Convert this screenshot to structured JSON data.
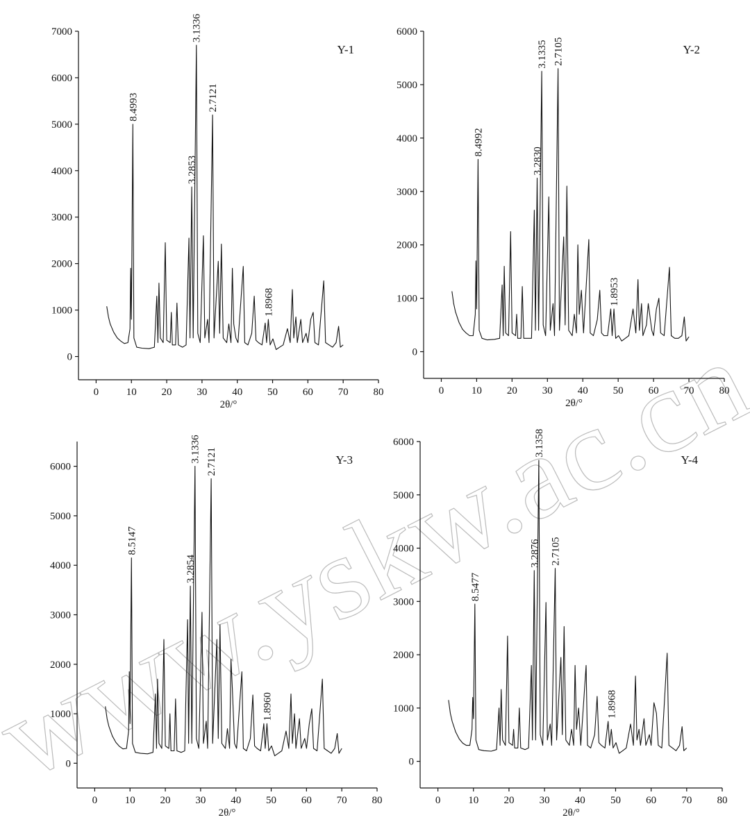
{
  "watermark": "www.yskw.ac.cn",
  "chart_data": [
    {
      "type": "line",
      "title": "Y-1",
      "xlabel": "2θ/°",
      "color": "#111111",
      "xlim": [
        -5,
        80
      ],
      "xticks": [
        0,
        10,
        20,
        30,
        40,
        50,
        60,
        70,
        80
      ],
      "ylim": [
        -500,
        7000
      ],
      "yticks": [
        0,
        1000,
        2000,
        3000,
        4000,
        5000,
        6000,
        7000
      ],
      "x": [
        3,
        3.5,
        4,
        5,
        6,
        7,
        8,
        9,
        9.6,
        9.8,
        10,
        10.4,
        10.7,
        11.5,
        13,
        15,
        16.5,
        17.2,
        17.5,
        17.8,
        18.2,
        19,
        19.6,
        20,
        21,
        21.3,
        21.6,
        22.5,
        22.9,
        23.3,
        24.5,
        25.5,
        26.3,
        26.6,
        27.1,
        27.5,
        28.4,
        28.8,
        29.5,
        30.4,
        30.8,
        31.6,
        32,
        33,
        33.4,
        34.6,
        35,
        35.5,
        36,
        37,
        37.6,
        38.2,
        38.6,
        39,
        39.6,
        40.2,
        41.7,
        42.1,
        43,
        44.1,
        44.8,
        45.3,
        46,
        47,
        47.9,
        48.3,
        48.8,
        49.3,
        50.1,
        51,
        52,
        53,
        54.2,
        55,
        55.6,
        56,
        56.6,
        57,
        58,
        58.5,
        59.5,
        60,
        60.8,
        61.5,
        62,
        63,
        64.5,
        65,
        66,
        67,
        68,
        68.7,
        69.2,
        70
      ],
      "values": [
        1080,
        850,
        700,
        520,
        400,
        330,
        280,
        300,
        600,
        1900,
        800,
        5000,
        400,
        200,
        180,
        170,
        200,
        1300,
        300,
        1580,
        400,
        300,
        2450,
        350,
        300,
        950,
        250,
        250,
        1150,
        250,
        200,
        250,
        2550,
        400,
        3650,
        400,
        6700,
        500,
        300,
        2600,
        400,
        800,
        300,
        5200,
        400,
        2050,
        500,
        2420,
        400,
        300,
        700,
        300,
        1900,
        700,
        400,
        300,
        1940,
        300,
        250,
        500,
        1300,
        350,
        300,
        250,
        720,
        300,
        800,
        250,
        380,
        150,
        200,
        250,
        600,
        300,
        1440,
        400,
        850,
        300,
        800,
        300,
        500,
        300,
        800,
        950,
        300,
        250,
        1630,
        300,
        250,
        200,
        300,
        650,
        200,
        250
      ],
      "annotations": [
        {
          "text": "8.4993",
          "x": 10.4,
          "y": 5000
        },
        {
          "text": "3.2853",
          "x": 27.1,
          "y": 3650
        },
        {
          "text": "3.1336",
          "x": 28.4,
          "y": 6700
        },
        {
          "text": "2.7121",
          "x": 33,
          "y": 5200
        },
        {
          "text": "1.8968",
          "x": 48.8,
          "y": 800
        }
      ]
    },
    {
      "type": "line",
      "title": "Y-2",
      "xlabel": "2θ/°",
      "color": "#111111",
      "xlim": [
        -5,
        80
      ],
      "xticks": [
        0,
        10,
        20,
        30,
        40,
        50,
        60,
        70,
        80
      ],
      "ylim": [
        -500,
        6000
      ],
      "yticks": [
        0,
        1000,
        2000,
        3000,
        4000,
        5000,
        6000
      ],
      "x": [
        3,
        3.5,
        4,
        5,
        6,
        7,
        8,
        9,
        9.6,
        9.8,
        10,
        10.4,
        10.7,
        11.5,
        13,
        15,
        16.5,
        17.2,
        17.5,
        17.8,
        18.2,
        19,
        19.6,
        20,
        21,
        21.3,
        21.6,
        22.5,
        22.9,
        23.3,
        24.5,
        25.5,
        26.3,
        26.6,
        27.1,
        27.5,
        28.4,
        28.8,
        29.5,
        30.4,
        30.8,
        31.6,
        32,
        33,
        33.4,
        34.6,
        35,
        35.5,
        36,
        37,
        37.6,
        38.2,
        38.6,
        39,
        39.6,
        40.2,
        41.7,
        42.1,
        43,
        44.1,
        44.8,
        45.3,
        46,
        47,
        47.9,
        48.3,
        48.8,
        49.3,
        50.1,
        51,
        52,
        53,
        54.2,
        55,
        55.6,
        56,
        56.6,
        57,
        58,
        58.5,
        59.5,
        60,
        60.8,
        61.5,
        62,
        63,
        64.5,
        65,
        66,
        67,
        68,
        68.7,
        69.2,
        70
      ],
      "values": [
        1130,
        900,
        750,
        550,
        420,
        350,
        300,
        300,
        700,
        1700,
        800,
        3600,
        400,
        250,
        220,
        230,
        250,
        1250,
        300,
        1600,
        350,
        300,
        2250,
        350,
        300,
        700,
        250,
        250,
        1220,
        250,
        250,
        250,
        2650,
        400,
        3250,
        400,
        5250,
        500,
        300,
        2900,
        400,
        900,
        300,
        5300,
        400,
        2150,
        500,
        3100,
        400,
        300,
        700,
        350,
        2000,
        700,
        1150,
        350,
        2100,
        350,
        300,
        600,
        1150,
        350,
        300,
        300,
        800,
        300,
        800,
        250,
        300,
        200,
        250,
        300,
        800,
        350,
        1350,
        400,
        900,
        300,
        500,
        900,
        400,
        300,
        800,
        1000,
        350,
        300,
        1580,
        300,
        250,
        250,
        300,
        650,
        200,
        280
      ],
      "annotations": [
        {
          "text": "8.4992",
          "x": 10.4,
          "y": 3600
        },
        {
          "text": "3.2830",
          "x": 27.1,
          "y": 3250
        },
        {
          "text": "3.1335",
          "x": 28.4,
          "y": 5250
        },
        {
          "text": "2.7105",
          "x": 33,
          "y": 5300
        },
        {
          "text": "1.8953",
          "x": 48.8,
          "y": 800
        }
      ]
    },
    {
      "type": "line",
      "title": "Y-3",
      "xlabel": "2θ/°",
      "color": "#111111",
      "xlim": [
        -5,
        80
      ],
      "xticks": [
        0,
        10,
        20,
        30,
        40,
        50,
        60,
        70,
        80
      ],
      "ylim": [
        -500,
        6500
      ],
      "yticks": [
        0,
        1000,
        2000,
        3000,
        4000,
        5000,
        6000
      ],
      "x": [
        3,
        3.5,
        4,
        5,
        6,
        7,
        8,
        9,
        9.6,
        9.8,
        10,
        10.4,
        10.7,
        11.5,
        13,
        15,
        16.5,
        17.2,
        17.5,
        17.8,
        18.2,
        19,
        19.6,
        20,
        21,
        21.3,
        21.6,
        22.5,
        22.9,
        23.3,
        24.5,
        25.5,
        26.3,
        26.6,
        27.1,
        27.5,
        28.4,
        28.8,
        29.5,
        30.4,
        30.8,
        31.6,
        32,
        33,
        33.4,
        34.6,
        35,
        35.5,
        36,
        37,
        37.6,
        38.2,
        38.6,
        39,
        39.6,
        40.2,
        41.7,
        42.1,
        43,
        44.1,
        44.8,
        45.3,
        46,
        47,
        47.9,
        48.3,
        48.8,
        49.3,
        50.1,
        51,
        52,
        53,
        54.2,
        55,
        55.6,
        56,
        56.6,
        57,
        58,
        58.5,
        59.5,
        60,
        60.8,
        61.5,
        62,
        63,
        64.5,
        65,
        66,
        67,
        68,
        68.7,
        69.2,
        70
      ],
      "values": [
        1150,
        900,
        750,
        550,
        420,
        340,
        290,
        300,
        650,
        1850,
        800,
        4150,
        400,
        220,
        200,
        190,
        220,
        1400,
        300,
        1700,
        400,
        300,
        2500,
        350,
        300,
        1000,
        250,
        250,
        1300,
        250,
        220,
        250,
        2900,
        400,
        3580,
        400,
        6000,
        500,
        300,
        3050,
        400,
        850,
        300,
        5750,
        400,
        2500,
        500,
        2800,
        400,
        300,
        700,
        300,
        2100,
        1500,
        400,
        300,
        1850,
        300,
        250,
        500,
        1380,
        350,
        300,
        250,
        800,
        300,
        800,
        250,
        350,
        150,
        200,
        250,
        650,
        300,
        1400,
        400,
        1000,
        300,
        900,
        300,
        500,
        300,
        800,
        1100,
        300,
        250,
        1700,
        300,
        250,
        200,
        300,
        600,
        200,
        300
      ],
      "annotations": [
        {
          "text": "8.5147",
          "x": 10.4,
          "y": 4150
        },
        {
          "text": "3.2854",
          "x": 27.1,
          "y": 3580
        },
        {
          "text": "3.1336",
          "x": 28.4,
          "y": 6000
        },
        {
          "text": "2.7121",
          "x": 33,
          "y": 5750
        },
        {
          "text": "1.8960",
          "x": 48.8,
          "y": 800
        }
      ]
    },
    {
      "type": "line",
      "title": "Y-4",
      "xlabel": "2θ/°",
      "color": "#111111",
      "xlim": [
        -5,
        80
      ],
      "xticks": [
        0,
        10,
        20,
        30,
        40,
        50,
        60,
        70,
        80
      ],
      "ylim": [
        -500,
        6000
      ],
      "yticks": [
        0,
        1000,
        2000,
        3000,
        4000,
        5000,
        6000
      ],
      "x": [
        3,
        3.5,
        4,
        5,
        6,
        7,
        8,
        9,
        9.6,
        9.8,
        10,
        10.4,
        10.7,
        11.5,
        13,
        15,
        16.5,
        17.2,
        17.5,
        17.8,
        18.2,
        19,
        19.6,
        20,
        21,
        21.3,
        21.6,
        22.5,
        22.9,
        23.3,
        24.5,
        25.5,
        26.3,
        26.6,
        27.1,
        27.5,
        28.4,
        28.8,
        29.5,
        30.4,
        30.8,
        31.6,
        32,
        33,
        33.4,
        34.6,
        35,
        35.5,
        36,
        37,
        37.6,
        38.2,
        38.6,
        39,
        39.6,
        40.2,
        41.7,
        42.1,
        43,
        44.1,
        44.8,
        45.3,
        46,
        47,
        47.9,
        48.3,
        48.8,
        49.3,
        50.1,
        51,
        52,
        53,
        54.2,
        55,
        55.6,
        56,
        56.6,
        57,
        58,
        58.5,
        59.5,
        60,
        60.8,
        61.5,
        62,
        63,
        64.5,
        65,
        66,
        67,
        68,
        68.7,
        69.2,
        70
      ],
      "values": [
        1150,
        900,
        750,
        550,
        420,
        340,
        300,
        300,
        600,
        1200,
        800,
        2950,
        400,
        220,
        200,
        190,
        220,
        1000,
        300,
        1350,
        400,
        300,
        2350,
        350,
        300,
        600,
        250,
        250,
        1000,
        250,
        220,
        250,
        1800,
        400,
        3580,
        400,
        5650,
        500,
        300,
        2980,
        400,
        700,
        300,
        3620,
        400,
        1950,
        500,
        2530,
        400,
        300,
        600,
        300,
        1800,
        600,
        1000,
        300,
        1800,
        300,
        250,
        500,
        1220,
        350,
        300,
        250,
        750,
        300,
        600,
        250,
        350,
        150,
        200,
        250,
        700,
        300,
        1600,
        400,
        600,
        300,
        800,
        300,
        500,
        300,
        1100,
        900,
        300,
        250,
        2030,
        300,
        250,
        200,
        300,
        650,
        200,
        250
      ],
      "annotations": [
        {
          "text": "8.5477",
          "x": 10.4,
          "y": 2950
        },
        {
          "text": "3.2876",
          "x": 27.1,
          "y": 3580
        },
        {
          "text": "3.1358",
          "x": 28.4,
          "y": 5650
        },
        {
          "text": "2.7105",
          "x": 33,
          "y": 3620
        },
        {
          "text": "1.8968",
          "x": 48.8,
          "y": 750
        }
      ]
    }
  ]
}
